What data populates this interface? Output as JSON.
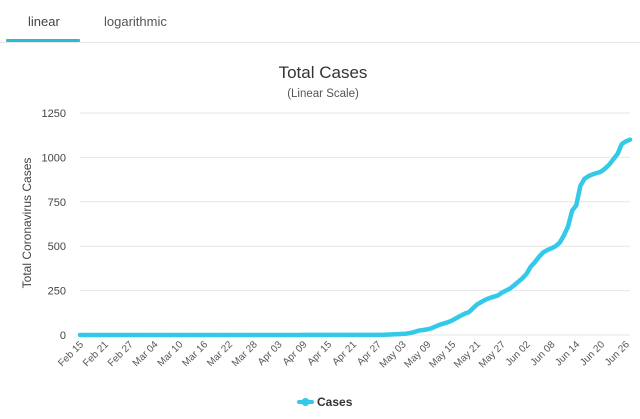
{
  "tabs": [
    {
      "label": "linear",
      "active": true
    },
    {
      "label": "logarithmic",
      "active": false
    }
  ],
  "chart_data": {
    "type": "line",
    "title": "Total Cases",
    "subtitle": "(Linear Scale)",
    "ylabel": "Total Coronavirus Cases",
    "xlabel": "",
    "ylim": [
      0,
      1250
    ],
    "yticks": [
      0,
      250,
      500,
      750,
      1000,
      1250
    ],
    "grid": true,
    "legend_position": "bottom-center",
    "color": "#33c9e8",
    "categories": [
      "Feb 15",
      "Feb 16",
      "Feb 17",
      "Feb 18",
      "Feb 19",
      "Feb 20",
      "Feb 21",
      "Feb 22",
      "Feb 23",
      "Feb 24",
      "Feb 25",
      "Feb 26",
      "Feb 27",
      "Feb 28",
      "Feb 29",
      "Mar 01",
      "Mar 02",
      "Mar 03",
      "Mar 04",
      "Mar 05",
      "Mar 06",
      "Mar 07",
      "Mar 08",
      "Mar 09",
      "Mar 10",
      "Mar 11",
      "Mar 12",
      "Mar 13",
      "Mar 14",
      "Mar 15",
      "Mar 16",
      "Mar 17",
      "Mar 18",
      "Mar 19",
      "Mar 20",
      "Mar 21",
      "Mar 22",
      "Mar 23",
      "Mar 24",
      "Mar 25",
      "Mar 26",
      "Mar 27",
      "Mar 28",
      "Mar 29",
      "Mar 30",
      "Mar 31",
      "Apr 01",
      "Apr 02",
      "Apr 03",
      "Apr 04",
      "Apr 05",
      "Apr 06",
      "Apr 07",
      "Apr 08",
      "Apr 09",
      "Apr 10",
      "Apr 11",
      "Apr 12",
      "Apr 13",
      "Apr 14",
      "Apr 15",
      "Apr 16",
      "Apr 17",
      "Apr 18",
      "Apr 19",
      "Apr 20",
      "Apr 21",
      "Apr 22",
      "Apr 23",
      "Apr 24",
      "Apr 25",
      "Apr 26",
      "Apr 27",
      "Apr 28",
      "Apr 29",
      "Apr 30",
      "May 01",
      "May 02",
      "May 03",
      "May 04",
      "May 05",
      "May 06",
      "May 07",
      "May 08",
      "May 09",
      "May 10",
      "May 11",
      "May 12",
      "May 13",
      "May 14",
      "May 15",
      "May 16",
      "May 17",
      "May 18",
      "May 19",
      "May 20",
      "May 21",
      "May 22",
      "May 23",
      "May 24",
      "May 25",
      "May 26",
      "May 27",
      "May 28",
      "May 29",
      "May 30",
      "May 31",
      "Jun 01",
      "Jun 02",
      "Jun 03",
      "Jun 04",
      "Jun 05",
      "Jun 06",
      "Jun 07",
      "Jun 08",
      "Jun 09",
      "Jun 10",
      "Jun 11",
      "Jun 12",
      "Jun 13",
      "Jun 14",
      "Jun 15",
      "Jun 16",
      "Jun 17",
      "Jun 18",
      "Jun 19",
      "Jun 20",
      "Jun 21",
      "Jun 22",
      "Jun 23",
      "Jun 24",
      "Jun 25",
      "Jun 26",
      "Jun 27"
    ],
    "tick_labels": [
      "Feb 15",
      "Feb 21",
      "Feb 27",
      "Mar 04",
      "Mar 10",
      "Mar 16",
      "Mar 22",
      "Mar 28",
      "Apr 03",
      "Apr 09",
      "Apr 15",
      "Apr 21",
      "Apr 27",
      "May 03",
      "May 09",
      "May 15",
      "May 21",
      "May 27",
      "Jun 02",
      "Jun 08",
      "Jun 14",
      "Jun 20",
      "Jun 26"
    ],
    "series": [
      {
        "name": "Cases",
        "values": [
          0,
          0,
          0,
          0,
          0,
          0,
          0,
          0,
          0,
          0,
          0,
          0,
          0,
          0,
          0,
          0,
          0,
          0,
          0,
          0,
          0,
          0,
          0,
          0,
          0,
          0,
          0,
          0,
          0,
          0,
          0,
          0,
          0,
          0,
          0,
          0,
          0,
          0,
          0,
          0,
          0,
          0,
          0,
          0,
          0,
          0,
          0,
          0,
          0,
          0,
          0,
          0,
          0,
          0,
          1,
          1,
          1,
          1,
          1,
          1,
          1,
          1,
          1,
          1,
          1,
          1,
          1,
          1,
          1,
          1,
          1,
          1,
          1,
          1,
          2,
          3,
          4,
          5,
          6,
          8,
          12,
          18,
          25,
          28,
          32,
          38,
          48,
          58,
          65,
          72,
          82,
          95,
          108,
          120,
          128,
          150,
          172,
          185,
          198,
          208,
          215,
          222,
          238,
          250,
          262,
          280,
          300,
          320,
          345,
          385,
          410,
          440,
          465,
          478,
          488,
          500,
          520,
          560,
          610,
          700,
          730,
          840,
          880,
          895,
          905,
          912,
          920,
          938,
          960,
          990,
          1020,
          1075,
          1090,
          1100
        ]
      }
    ]
  }
}
